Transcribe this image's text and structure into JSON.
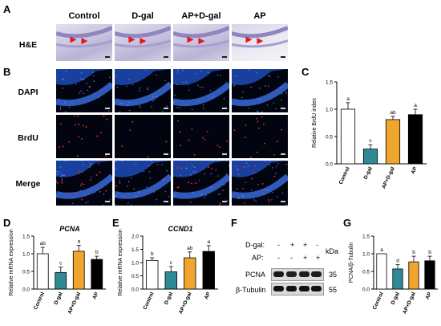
{
  "panels": {
    "A": "A",
    "B": "B",
    "C": "C",
    "D": "D",
    "E": "E",
    "F": "F",
    "G": "G"
  },
  "groups": [
    "Control",
    "D-gal",
    "AP+D-gal",
    "AP"
  ],
  "rows": {
    "he": "H&E",
    "dapi": "DAPI",
    "brdu": "BrdU",
    "merge": "Merge"
  },
  "colors": {
    "control": "#ffffff",
    "dgal": "#2e8a94",
    "apdgal": "#f0a52e",
    "ap": "#000000"
  },
  "chart_data": [
    {
      "panel": "C",
      "type": "bar",
      "title": "",
      "xlabel": "",
      "ylabel": "Relative BrdU index",
      "categories": [
        "Control",
        "D-gal",
        "AP+D-gal",
        "AP"
      ],
      "values": [
        1.0,
        0.27,
        0.81,
        0.9
      ],
      "errors": [
        0.12,
        0.08,
        0.06,
        0.1
      ],
      "letters": [
        "a",
        "c",
        "ab",
        "a"
      ],
      "ylim": [
        0,
        1.5
      ],
      "yticks": [
        "0.0",
        "0.5",
        "1.0",
        "1.5"
      ],
      "ytick_values": [
        0,
        0.5,
        1.0,
        1.5
      ]
    },
    {
      "panel": "D",
      "type": "bar",
      "title": "PCNA",
      "xlabel": "",
      "ylabel": "Relative mRNA expression",
      "categories": [
        "Control",
        "D-gal",
        "AP+D-gal",
        "AP"
      ],
      "values": [
        1.0,
        0.47,
        1.07,
        0.84
      ],
      "errors": [
        0.18,
        0.15,
        0.17,
        0.09
      ],
      "letters": [
        "ab",
        "c",
        "a",
        "b"
      ],
      "ylim": [
        0,
        1.5
      ],
      "yticks": [
        "0.0",
        "0.5",
        "1.0",
        "1.5"
      ],
      "ytick_values": [
        0,
        0.5,
        1.0,
        1.5
      ]
    },
    {
      "panel": "E",
      "type": "bar",
      "title": "CCND1",
      "xlabel": "",
      "ylabel": "Relative mRNA expression",
      "categories": [
        "Control",
        "D-gal",
        "AP+D-gal",
        "AP"
      ],
      "values": [
        1.08,
        0.65,
        1.18,
        1.42
      ],
      "errors": [
        0.1,
        0.2,
        0.22,
        0.22
      ],
      "letters": [
        "b",
        "c",
        "ab",
        "a"
      ],
      "ylim": [
        0,
        2.0
      ],
      "yticks": [
        "0.0",
        "0.5",
        "1.0",
        "1.5",
        "2.0"
      ],
      "ytick_values": [
        0,
        0.5,
        1.0,
        1.5,
        2.0
      ]
    },
    {
      "panel": "G",
      "type": "bar",
      "title": "",
      "xlabel": "",
      "ylabel": "PCNA/β-Tubulin",
      "categories": [
        "Control",
        "D-gal",
        "AP+D-gal",
        "AP"
      ],
      "values": [
        1.0,
        0.57,
        0.77,
        0.8
      ],
      "errors": [
        0.0,
        0.12,
        0.16,
        0.13
      ],
      "letters": [
        "a",
        "d",
        "b",
        "b"
      ],
      "ylim": [
        0,
        1.5
      ],
      "yticks": [
        "0.0",
        "0.5",
        "1.0",
        "1.5"
      ],
      "ytick_values": [
        0,
        0.5,
        1.0,
        1.5
      ]
    }
  ],
  "blot": {
    "dgal_label": "D-gal:",
    "ap_label": "AP:",
    "kda_label": "kDa",
    "dgal_signs": [
      "-",
      "+",
      "+",
      "-"
    ],
    "ap_signs": [
      "-",
      "-",
      "+",
      "+"
    ],
    "pcna_label": "PCNA",
    "pcna_kda": "35",
    "tubulin_label": "β-Tubulin",
    "tubulin_kda": "55"
  }
}
